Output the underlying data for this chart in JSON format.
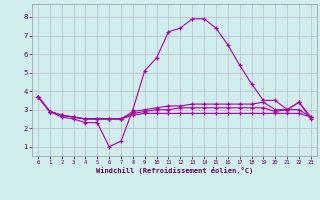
{
  "xlabel": "Windchill (Refroidissement éolien,°C)",
  "x": [
    0,
    1,
    2,
    3,
    4,
    5,
    6,
    7,
    8,
    9,
    10,
    11,
    12,
    13,
    14,
    15,
    16,
    17,
    18,
    19,
    20,
    21,
    22,
    23
  ],
  "line1": [
    3.7,
    2.9,
    2.6,
    2.5,
    2.3,
    2.3,
    1.0,
    1.3,
    3.0,
    5.1,
    5.8,
    7.2,
    7.4,
    7.9,
    7.9,
    7.4,
    6.5,
    5.4,
    4.4,
    3.5,
    3.5,
    3.0,
    3.4,
    2.5
  ],
  "line2": [
    3.7,
    2.9,
    2.7,
    2.6,
    2.5,
    2.5,
    2.5,
    2.5,
    2.9,
    3.0,
    3.1,
    3.2,
    3.2,
    3.3,
    3.3,
    3.3,
    3.3,
    3.3,
    3.3,
    3.4,
    3.0,
    3.0,
    3.4,
    2.6
  ],
  "line3": [
    3.7,
    2.9,
    2.7,
    2.6,
    2.5,
    2.5,
    2.5,
    2.5,
    2.8,
    2.9,
    3.0,
    3.0,
    3.1,
    3.1,
    3.1,
    3.1,
    3.1,
    3.1,
    3.1,
    3.1,
    2.9,
    3.0,
    3.0,
    2.6
  ],
  "line4": [
    3.7,
    2.9,
    2.7,
    2.6,
    2.5,
    2.5,
    2.5,
    2.5,
    2.7,
    2.8,
    2.8,
    2.8,
    2.8,
    2.8,
    2.8,
    2.8,
    2.8,
    2.8,
    2.8,
    2.8,
    2.8,
    2.8,
    2.8,
    2.6
  ],
  "line_color": "#aa00aa",
  "bg_color": "#d0eeee",
  "grid_color": "#bbbbcc",
  "ylim": [
    0.5,
    8.7
  ],
  "xlim": [
    -0.5,
    23.5
  ],
  "yticks": [
    1,
    2,
    3,
    4,
    5,
    6,
    7,
    8
  ],
  "xticks": [
    0,
    1,
    2,
    3,
    4,
    5,
    6,
    7,
    8,
    9,
    10,
    11,
    12,
    13,
    14,
    15,
    16,
    17,
    18,
    19,
    20,
    21,
    22,
    23
  ]
}
